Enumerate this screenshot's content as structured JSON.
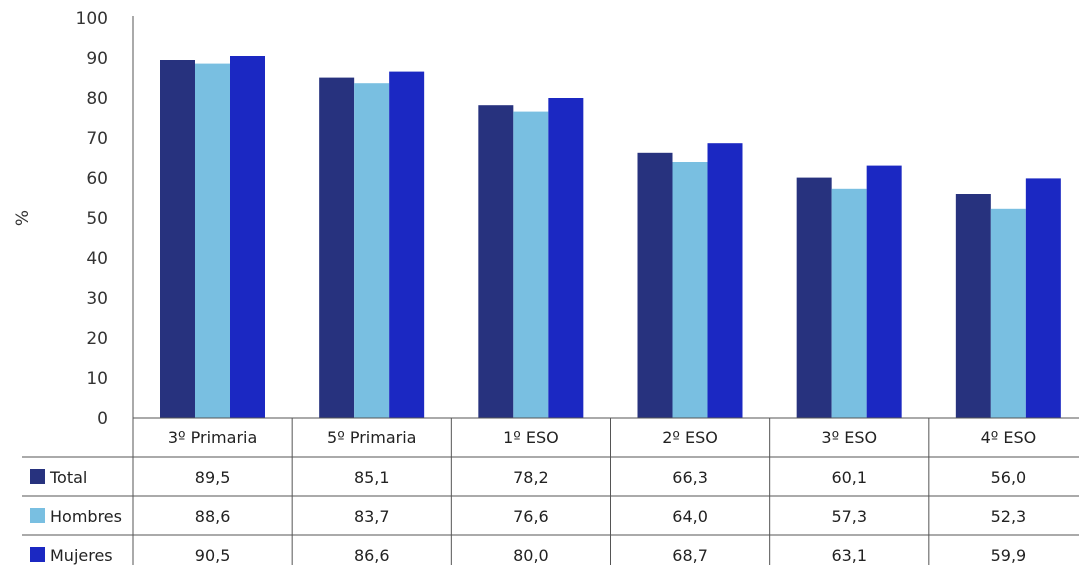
{
  "chart_data": {
    "type": "bar",
    "title": "",
    "xlabel": "",
    "ylabel": "%",
    "ylim": [
      0,
      100
    ],
    "yticks": [
      0,
      10,
      20,
      30,
      40,
      50,
      60,
      70,
      80,
      90,
      100
    ],
    "grid": false,
    "legend_position": "left of data table",
    "categories": [
      "3º Primaria",
      "5º Primaria",
      "1º ESO",
      "2º ESO",
      "3º ESO",
      "4º ESO"
    ],
    "series": [
      {
        "name": "Total",
        "color": "#27327e",
        "values": [
          89.5,
          85.1,
          78.2,
          66.3,
          60.1,
          56.0
        ],
        "labels": [
          "89,5",
          "85,1",
          "78,2",
          "66,3",
          "60,1",
          "56,0"
        ]
      },
      {
        "name": "Hombres",
        "color": "#79bfe1",
        "values": [
          88.6,
          83.7,
          76.6,
          64.0,
          57.3,
          52.3
        ],
        "labels": [
          "88,6",
          "83,7",
          "76,6",
          "64,0",
          "57,3",
          "52,3"
        ]
      },
      {
        "name": "Mujeres",
        "color": "#1b28c2",
        "values": [
          90.5,
          86.6,
          80.0,
          68.7,
          63.1,
          59.9
        ],
        "labels": [
          "90,5",
          "86,6",
          "80,0",
          "68,7",
          "63,1",
          "59,9"
        ]
      }
    ]
  }
}
